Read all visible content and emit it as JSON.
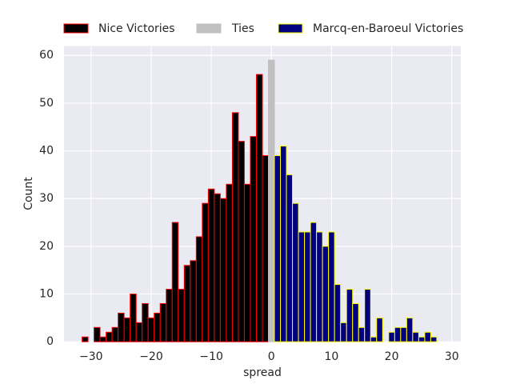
{
  "chart_data": {
    "type": "histogram",
    "x_label": "spread",
    "y_label": "Count",
    "series": [
      {
        "name": "Nice Victories",
        "color": "#000000",
        "edgecolor": "#ff0000",
        "bins": [
          -31.5,
          -30.5,
          -29.5,
          -28.5,
          -27.5,
          -26.5,
          -25.5,
          -24.5,
          -23.5,
          -22.5,
          -21.5,
          -20.5,
          -19.5,
          -18.5,
          -17.5,
          -16.5,
          -15.5,
          -14.5,
          -13.5,
          -12.5,
          -11.5,
          -10.5,
          -9.5,
          -8.5,
          -7.5,
          -6.5,
          -5.5,
          -4.5,
          -3.5,
          -2.5,
          -1.5,
          -0.5
        ],
        "values": [
          1,
          0,
          3,
          1,
          2,
          3,
          6,
          5,
          10,
          4,
          8,
          5,
          6,
          8,
          11,
          25,
          11,
          16,
          17,
          22,
          29,
          32,
          31,
          30,
          33,
          48,
          42,
          33,
          43,
          56,
          39
        ]
      },
      {
        "name": "Ties",
        "color": "#c0c0c0",
        "edgecolor": "#c0c0c0",
        "bins": [
          -0.5,
          0.5
        ],
        "values": [
          59
        ]
      },
      {
        "name": "Marcq-en-Baroeul Victories",
        "color": "#000080",
        "edgecolor": "#ffff00",
        "bins": [
          0.5,
          1.5,
          2.5,
          3.5,
          4.5,
          5.5,
          6.5,
          7.5,
          8.5,
          9.5,
          10.5,
          11.5,
          12.5,
          13.5,
          14.5,
          15.5,
          16.5,
          17.5,
          18.5,
          19.5,
          20.5,
          21.5,
          22.5,
          23.5,
          24.5,
          25.5,
          26.5,
          27.5
        ],
        "values": [
          39,
          41,
          35,
          29,
          23,
          23,
          25,
          23,
          20,
          23,
          12,
          4,
          11,
          8,
          3,
          11,
          1,
          5,
          0,
          2,
          3,
          3,
          5,
          2,
          1,
          2,
          1
        ]
      }
    ],
    "xlim": [
      -34.5,
      31.5
    ],
    "xticks": [
      {
        "value": -30,
        "label": "−30"
      },
      {
        "value": -20,
        "label": "−20"
      },
      {
        "value": -10,
        "label": "−10"
      },
      0,
      10,
      20,
      30
    ],
    "ylim": [
      0,
      61.95
    ],
    "yticks": [
      0,
      10,
      20,
      30,
      40,
      50,
      60
    ],
    "grid": true,
    "legend": "top"
  }
}
